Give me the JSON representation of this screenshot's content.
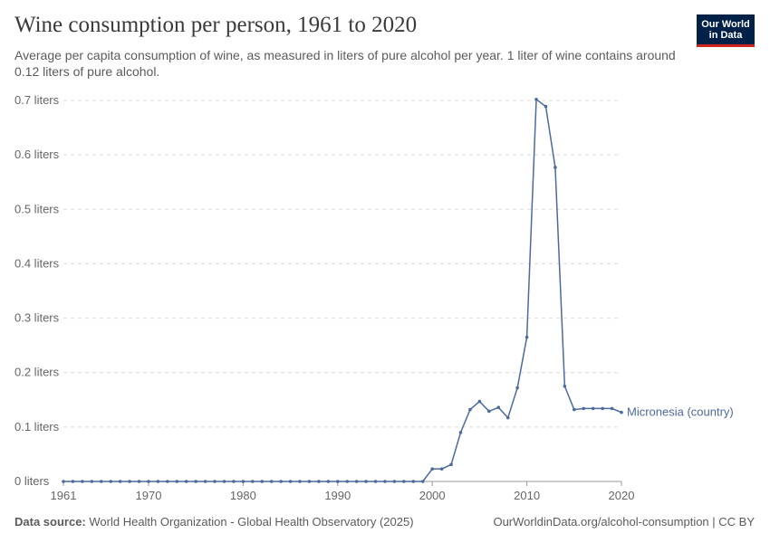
{
  "title": "Wine consumption per person, 1961 to 2020",
  "subtitle": "Average per capita consumption of wine, as measured in liters of pure alcohol per year. 1 liter of wine contains around 0.12 liters of pure alcohol.",
  "logo": {
    "line1": "Our World",
    "line2": "in Data"
  },
  "footer": {
    "source_label": "Data source:",
    "source_text": "World Health Organization - Global Health Observatory (2025)",
    "right": "OurWorldinData.org/alcohol-consumption | CC BY"
  },
  "colors": {
    "series": "#4c6a9c",
    "grid": "#dddddd",
    "axis": "#999999",
    "logo_bg": "#002147",
    "logo_accent": "#ce261e"
  },
  "chart_data": {
    "type": "line",
    "title": "Wine consumption per person, 1961 to 2020",
    "xlabel": "",
    "ylabel": "",
    "xlim": [
      1961,
      2020
    ],
    "ylim": [
      0,
      0.7
    ],
    "grid": true,
    "y_ticks": [
      {
        "value": 0,
        "label": "0 liters"
      },
      {
        "value": 0.1,
        "label": "0.1 liters"
      },
      {
        "value": 0.2,
        "label": "0.2 liters"
      },
      {
        "value": 0.3,
        "label": "0.3 liters"
      },
      {
        "value": 0.4,
        "label": "0.4 liters"
      },
      {
        "value": 0.5,
        "label": "0.5 liters"
      },
      {
        "value": 0.6,
        "label": "0.6 liters"
      },
      {
        "value": 0.7,
        "label": "0.7 liters"
      }
    ],
    "x_ticks": [
      {
        "value": 1961,
        "label": "1961"
      },
      {
        "value": 1970,
        "label": "1970"
      },
      {
        "value": 1980,
        "label": "1980"
      },
      {
        "value": 1990,
        "label": "1990"
      },
      {
        "value": 2000,
        "label": "2000"
      },
      {
        "value": 2010,
        "label": "2010"
      },
      {
        "value": 2020,
        "label": "2020"
      }
    ],
    "series": [
      {
        "name": "Micronesia (country)",
        "x": [
          1961,
          1962,
          1963,
          1964,
          1965,
          1966,
          1967,
          1968,
          1969,
          1970,
          1971,
          1972,
          1973,
          1974,
          1975,
          1976,
          1977,
          1978,
          1979,
          1980,
          1981,
          1982,
          1983,
          1984,
          1985,
          1986,
          1987,
          1988,
          1989,
          1990,
          1991,
          1992,
          1993,
          1994,
          1995,
          1996,
          1997,
          1998,
          1999,
          2000,
          2001,
          2002,
          2003,
          2004,
          2005,
          2006,
          2007,
          2008,
          2009,
          2010,
          2011,
          2012,
          2013,
          2014,
          2015,
          2016,
          2017,
          2018,
          2019,
          2020
        ],
        "y": [
          0,
          0,
          0,
          0,
          0,
          0,
          0,
          0,
          0,
          0,
          0,
          0,
          0,
          0,
          0,
          0,
          0,
          0,
          0,
          0,
          0,
          0,
          0,
          0,
          0,
          0,
          0,
          0,
          0,
          0,
          0,
          0,
          0,
          0,
          0,
          0,
          0,
          0,
          0,
          0.023,
          0.023,
          0.031,
          0.09,
          0.132,
          0.147,
          0.129,
          0.136,
          0.117,
          0.172,
          0.265,
          0.702,
          0.689,
          0.577,
          0.175,
          0.132,
          0.134,
          0.134,
          0.134,
          0.134,
          0.127
        ]
      }
    ]
  }
}
